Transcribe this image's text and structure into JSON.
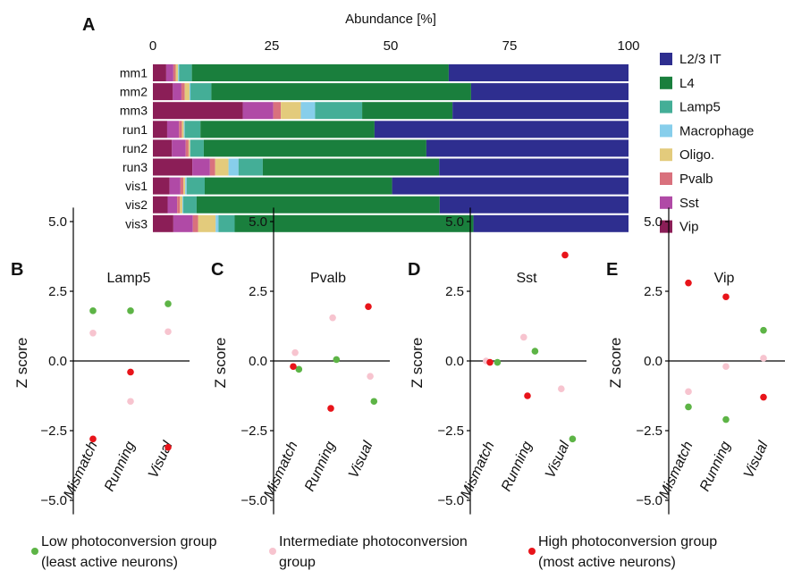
{
  "chart_data": [
    {
      "panel": "A",
      "type": "bar",
      "orientation": "horizontal",
      "stacked": true,
      "xlabel": "Abundance [%]",
      "xlim": [
        0,
        100
      ],
      "xticks": [
        "0",
        "25",
        "50",
        "75",
        "100"
      ],
      "categories": [
        "mm1",
        "mm2",
        "mm3",
        "run1",
        "run2",
        "run3",
        "vis1",
        "vis2",
        "vis3"
      ],
      "legend_position": "right",
      "series": [
        {
          "name": "Vip",
          "color": "#8B1E57",
          "values": [
            2.8,
            4.2,
            18.9,
            3.0,
            4.0,
            8.3,
            3.5,
            3.1,
            4.3
          ]
        },
        {
          "name": "Sst",
          "color": "#B04AA6",
          "values": [
            1.5,
            1.8,
            6.4,
            2.5,
            2.9,
            3.7,
            2.3,
            2.0,
            4.1
          ]
        },
        {
          "name": "Pvalb",
          "color": "#D9717D",
          "values": [
            0.5,
            0.7,
            1.6,
            0.6,
            0.6,
            1.1,
            0.6,
            0.6,
            1.1
          ]
        },
        {
          "name": "Oligo.",
          "color": "#E3CB7C",
          "values": [
            0.5,
            1.0,
            4.2,
            0.4,
            0.3,
            2.8,
            0.4,
            0.5,
            3.7
          ]
        },
        {
          "name": "Macrophage",
          "color": "#87CEEB",
          "values": [
            0.2,
            0.2,
            3.0,
            0.2,
            0.1,
            2.1,
            0.3,
            0.2,
            0.6
          ]
        },
        {
          "name": "Lamp5",
          "color": "#44AE97",
          "values": [
            2.7,
            4.4,
            9.9,
            3.3,
            2.8,
            5.1,
            3.8,
            2.8,
            3.4
          ]
        },
        {
          "name": "L4",
          "color": "#1A7F3D",
          "values": [
            54.0,
            54.6,
            19.0,
            36.6,
            46.8,
            37.1,
            39.4,
            51.1,
            50.2
          ]
        },
        {
          "name": "L2/3 IT",
          "color": "#2E2E8F",
          "values": [
            37.8,
            33.1,
            37.0,
            53.4,
            42.5,
            39.8,
            49.7,
            39.7,
            32.6
          ]
        }
      ]
    },
    {
      "panel": "B",
      "type": "scatter",
      "title": "Lamp5",
      "ylabel": "Z score",
      "ylim": [
        -5.5,
        5.5
      ],
      "yticks": [
        "5.0",
        "2.5",
        "0.0",
        "−2.5",
        "−5.0"
      ],
      "categories": [
        "Mismatch",
        "Running",
        "Visual"
      ],
      "series": [
        {
          "key": "low",
          "color": "#5DB446",
          "x_offset": 0.0,
          "values": [
            1.8,
            1.8,
            2.05
          ]
        },
        {
          "key": "int",
          "color": "#F7C4CF",
          "x_offset": 0.0,
          "values": [
            1.0,
            -1.45,
            1.05
          ]
        },
        {
          "key": "high",
          "color": "#E8141A",
          "x_offset": 0.0,
          "values": [
            -2.8,
            -0.4,
            -3.1
          ]
        }
      ]
    },
    {
      "panel": "C",
      "type": "scatter",
      "title": "Pvalb",
      "ylabel": "Z score",
      "ylim": [
        -5.5,
        5.5
      ],
      "yticks": [
        "5.0",
        "2.5",
        "0.0",
        "−2.5",
        "−5.0"
      ],
      "categories": [
        "Mismatch",
        "Running",
        "Visual"
      ],
      "series": [
        {
          "key": "int",
          "color": "#F7C4CF",
          "x_offset": 0.05,
          "values": [
            0.3,
            1.55,
            -0.55
          ]
        },
        {
          "key": "low",
          "color": "#5DB446",
          "x_offset": 0.15,
          "values": [
            -0.3,
            0.05,
            -1.45
          ]
        },
        {
          "key": "high",
          "color": "#E8141A",
          "x_offset": 0.0,
          "values": [
            -0.2,
            -1.7,
            1.95
          ]
        }
      ]
    },
    {
      "panel": "D",
      "type": "scatter",
      "title": "Sst",
      "ylabel": "Z score",
      "ylim": [
        -5.5,
        5.5
      ],
      "yticks": [
        "5.0",
        "2.5",
        "0.0",
        "−2.5",
        "−5.0"
      ],
      "categories": [
        "Mismatch",
        "Running",
        "Visual"
      ],
      "series": [
        {
          "key": "int",
          "color": "#F7C4CF",
          "x_offset": -0.1,
          "values": [
            0.0,
            0.85,
            -1.0
          ]
        },
        {
          "key": "low",
          "color": "#5DB446",
          "x_offset": 0.2,
          "values": [
            -0.05,
            0.35,
            -2.8
          ]
        },
        {
          "key": "high",
          "color": "#E8141A",
          "x_offset": 0.0,
          "values": [
            -0.05,
            -1.25,
            3.8
          ]
        }
      ]
    },
    {
      "panel": "E",
      "type": "scatter",
      "title": "Vip",
      "ylabel": "Z score",
      "ylim": [
        -5.5,
        5.5
      ],
      "yticks": [
        "5.0",
        "2.5",
        "0.0",
        "−2.5",
        "−5.0"
      ],
      "categories": [
        "Mismatch",
        "Running",
        "Visual"
      ],
      "series": [
        {
          "key": "low",
          "color": "#5DB446",
          "x_offset": 0.0,
          "values": [
            -1.65,
            -2.1,
            1.1
          ]
        },
        {
          "key": "int",
          "color": "#F7C4CF",
          "x_offset": 0.0,
          "values": [
            -1.1,
            -0.2,
            0.1
          ]
        },
        {
          "key": "high",
          "color": "#E8141A",
          "x_offset": 0.0,
          "values": [
            2.8,
            2.3,
            -1.3
          ]
        }
      ]
    }
  ],
  "legend": [
    {
      "key": "low",
      "color": "#5DB446",
      "line1": "Low photoconversion group",
      "line2": "(least active neurons)"
    },
    {
      "key": "int",
      "color": "#F7C4CF",
      "line1": "Intermediate photoconversion",
      "line2": "group"
    },
    {
      "key": "high",
      "color": "#E8141A",
      "line1": "High photoconversion group",
      "line2": "(most active neurons)"
    }
  ]
}
